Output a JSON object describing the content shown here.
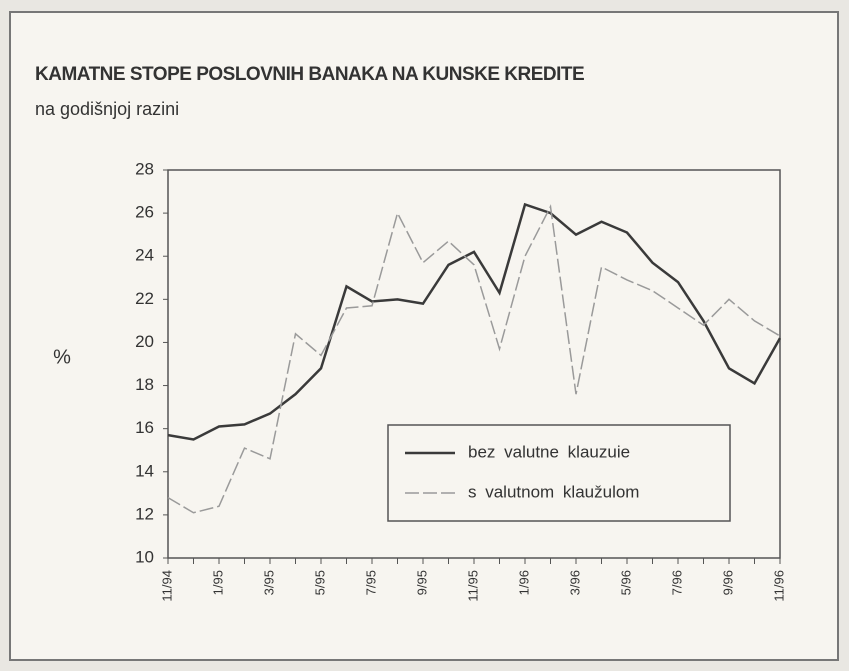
{
  "chart_data": {
    "type": "line",
    "title": "KAMATNE STOPE POSLOVNIH BANAKA NA KUNSKE KREDITE",
    "subtitle": "na godišnjoj razini",
    "y_label": "%",
    "categories": [
      "11/94",
      null,
      "1/95",
      null,
      "3/95",
      null,
      "5/95",
      null,
      "7/95",
      null,
      "9/95",
      null,
      "11/95",
      null,
      "1/96",
      null,
      "3/96",
      null,
      "5/96",
      null,
      "7/96",
      null,
      "9/96",
      null,
      "11/96"
    ],
    "series": [
      {
        "name": "bez valutne klauzuie",
        "color": "#3a3a3a",
        "dash": false,
        "values": [
          15.7,
          15.5,
          16.1,
          16.2,
          16.7,
          17.6,
          18.8,
          22.6,
          21.9,
          22.0,
          21.8,
          23.6,
          24.2,
          22.3,
          26.4,
          26.0,
          25.0,
          25.6,
          25.1,
          23.7,
          22.8,
          21.0,
          18.8,
          18.1,
          20.2
        ]
      },
      {
        "name": "s valutnom klaužulom",
        "color": "#9a9a9a",
        "dash": true,
        "values": [
          12.8,
          12.1,
          12.4,
          15.1,
          14.6,
          20.4,
          19.4,
          21.6,
          21.7,
          26.0,
          23.7,
          24.7,
          23.6,
          19.7,
          24.0,
          26.3,
          17.6,
          23.5,
          22.9,
          22.4,
          21.6,
          20.8,
          22.0,
          21.0,
          20.3
        ]
      }
    ],
    "ylim": [
      10,
      28
    ],
    "yticks": [
      10,
      12,
      14,
      16,
      18,
      20,
      22,
      24,
      26,
      28
    ],
    "grid": false
  }
}
